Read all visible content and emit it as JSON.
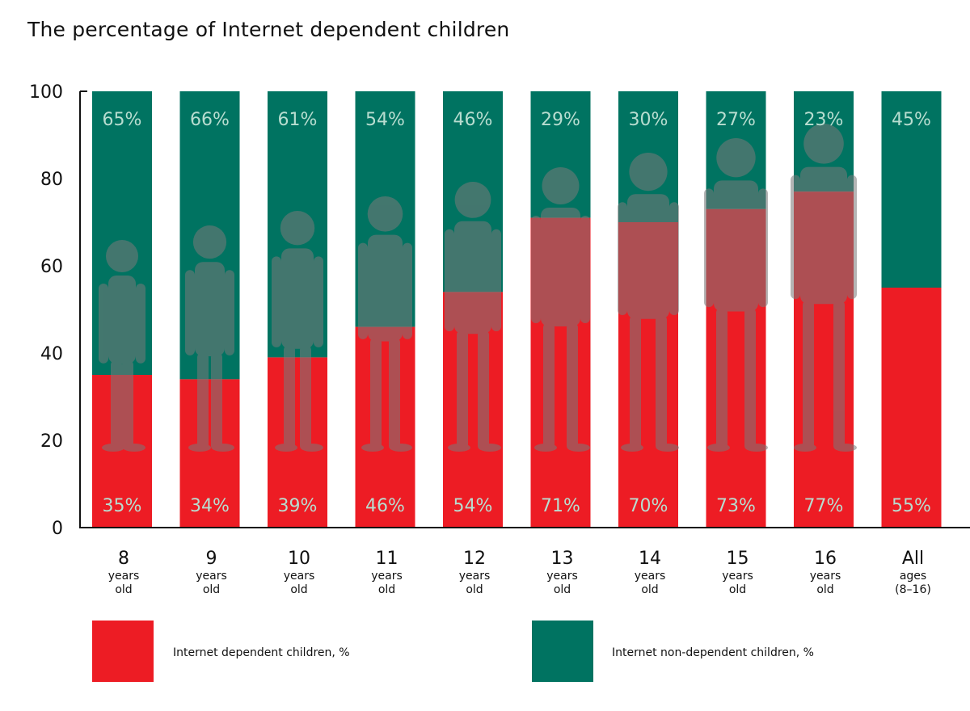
{
  "chart_data": {
    "type": "bar",
    "stacked": true,
    "title": "The percentage of Internet dependent children",
    "categories": [
      {
        "main": "8",
        "sub1": "years",
        "sub2": "old"
      },
      {
        "main": "9",
        "sub1": "years",
        "sub2": "old"
      },
      {
        "main": "10",
        "sub1": "years",
        "sub2": "old"
      },
      {
        "main": "11",
        "sub1": "years",
        "sub2": "old"
      },
      {
        "main": "12",
        "sub1": "years",
        "sub2": "old"
      },
      {
        "main": "13",
        "sub1": "years",
        "sub2": "old"
      },
      {
        "main": "14",
        "sub1": "years",
        "sub2": "old"
      },
      {
        "main": "15",
        "sub1": "years",
        "sub2": "old"
      },
      {
        "main": "16",
        "sub1": "years",
        "sub2": "old"
      },
      {
        "main": "All",
        "sub1": "ages",
        "sub2": "(8–16)"
      }
    ],
    "series": [
      {
        "name": "Internet dependent children, %",
        "color": "#ed1c24",
        "values": [
          35,
          34,
          39,
          46,
          54,
          71,
          70,
          73,
          77,
          55
        ],
        "labels": [
          "35%",
          "34%",
          "39%",
          "46%",
          "54%",
          "71%",
          "70%",
          "73%",
          "77%",
          "55%"
        ]
      },
      {
        "name": "Internet non-dependent children, %",
        "color": "#007361",
        "values": [
          65,
          66,
          61,
          54,
          46,
          29,
          30,
          27,
          23,
          45
        ],
        "labels": [
          "65%",
          "66%",
          "61%",
          "54%",
          "46%",
          "29%",
          "30%",
          "27%",
          "23%",
          "45%"
        ]
      }
    ],
    "ylim": [
      0,
      100
    ],
    "yticks": [
      "0",
      "20",
      "40",
      "60",
      "80",
      "100"
    ],
    "grid": false,
    "legend": "bottom",
    "decoration": "child silhouettes behind bars, growing with age"
  }
}
